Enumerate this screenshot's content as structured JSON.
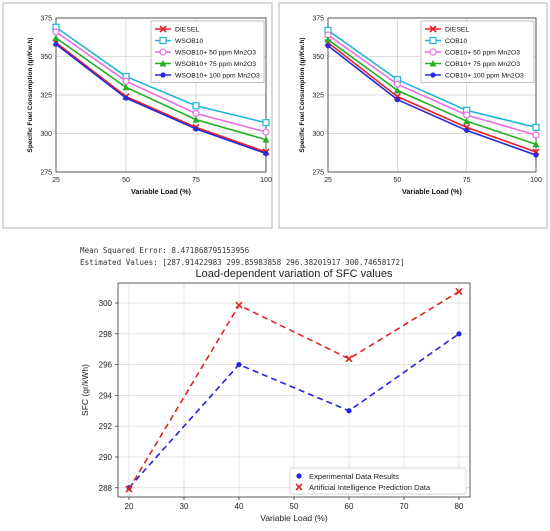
{
  "chart_data": [
    {
      "type": "line",
      "ylabel": "Specific Fuel Consumption (gr/Kw.h)",
      "xlabel": "Variable Load (%)",
      "xlim": [
        25,
        100
      ],
      "ylim": [
        275,
        375
      ],
      "xticks": [
        25,
        50,
        75,
        100
      ],
      "yticks": [
        275,
        300,
        325,
        350,
        375
      ],
      "legend_position": "top-right",
      "series": [
        {
          "name": "DIESEL",
          "color": "#e8202a",
          "marker": "x",
          "x": [
            25,
            50,
            75,
            100
          ],
          "values": [
            359,
            324,
            304,
            288
          ]
        },
        {
          "name": "WSOB10",
          "color": "#1fb5d8",
          "marker": "square",
          "x": [
            25,
            50,
            75,
            100
          ],
          "values": [
            369,
            337,
            318,
            307
          ]
        },
        {
          "name": "WSOB10+ 50 ppm Mn2O3",
          "color": "#e66ee6",
          "marker": "circle",
          "x": [
            25,
            50,
            75,
            100
          ],
          "values": [
            366,
            334,
            313,
            301
          ]
        },
        {
          "name": "WSOB10+ 75 ppm Mn2O3",
          "color": "#22b022",
          "marker": "triangle",
          "x": [
            25,
            50,
            75,
            100
          ],
          "values": [
            362,
            330,
            309,
            296
          ]
        },
        {
          "name": "WSOB10+ 100 ppm Mn2O3",
          "color": "#2a2ad8",
          "marker": "dot",
          "x": [
            25,
            50,
            75,
            100
          ],
          "values": [
            358,
            323,
            303,
            287
          ]
        }
      ]
    },
    {
      "type": "line",
      "ylabel": "Specific Fuel Consumption (gr/Kw.h)",
      "xlabel": "Variable Load (%)",
      "xlim": [
        25,
        100
      ],
      "ylim": [
        275,
        375
      ],
      "xticks": [
        25,
        50,
        75,
        100
      ],
      "yticks": [
        275,
        300,
        325,
        350,
        375
      ],
      "legend_position": "top-right",
      "series": [
        {
          "name": "DIESEL",
          "color": "#e8202a",
          "marker": "x",
          "x": [
            25,
            50,
            75,
            100
          ],
          "values": [
            359,
            324,
            304,
            288
          ]
        },
        {
          "name": "COB10",
          "color": "#1fb5d8",
          "marker": "square",
          "x": [
            25,
            50,
            75,
            100
          ],
          "values": [
            367,
            335,
            315,
            304
          ]
        },
        {
          "name": "COB10+ 50 ppm Mn2O3",
          "color": "#e66ee6",
          "marker": "circle",
          "x": [
            25,
            50,
            75,
            100
          ],
          "values": [
            364,
            332,
            312,
            299
          ]
        },
        {
          "name": "COB10+ 75 ppm Mn2O3",
          "color": "#22b022",
          "marker": "triangle",
          "x": [
            25,
            50,
            75,
            100
          ],
          "values": [
            361,
            328,
            308,
            293
          ]
        },
        {
          "name": "COB10+ 100 ppm Mn2O3",
          "color": "#2a2ad8",
          "marker": "dot",
          "x": [
            25,
            50,
            75,
            100
          ],
          "values": [
            357,
            322,
            302,
            286
          ]
        }
      ]
    },
    {
      "type": "line",
      "title": "Load-dependent variation of SFC values",
      "xlabel": "Variable Load (%)",
      "ylabel": "SFC (gr/kWh)",
      "xlim": [
        18,
        82
      ],
      "ylim": [
        287.4,
        301.3
      ],
      "xticks": [
        20,
        30,
        40,
        50,
        60,
        70,
        80
      ],
      "yticks": [
        288,
        290,
        292,
        294,
        296,
        298,
        300
      ],
      "grid": true,
      "legend_position": "bottom-right",
      "series": [
        {
          "name": "Experimental Data Results",
          "color": "#2323e0",
          "marker": "dot",
          "x": [
            20,
            40,
            60,
            80
          ],
          "values": [
            288,
            296,
            293,
            298
          ]
        },
        {
          "name": "Artificial Intelligence Prediction Data",
          "color": "#e02323",
          "marker": "x",
          "x": [
            20,
            40,
            60,
            80
          ],
          "values": [
            287.91422983,
            299.85983858,
            296.38201917,
            300.74658172
          ]
        }
      ]
    }
  ],
  "console": {
    "mse_line": "Mean Squared Error: 8.471868795153956",
    "estimates_line": "Estimated Values: [287.91422983 299.85983858 296.38201917 300.74658172]"
  }
}
